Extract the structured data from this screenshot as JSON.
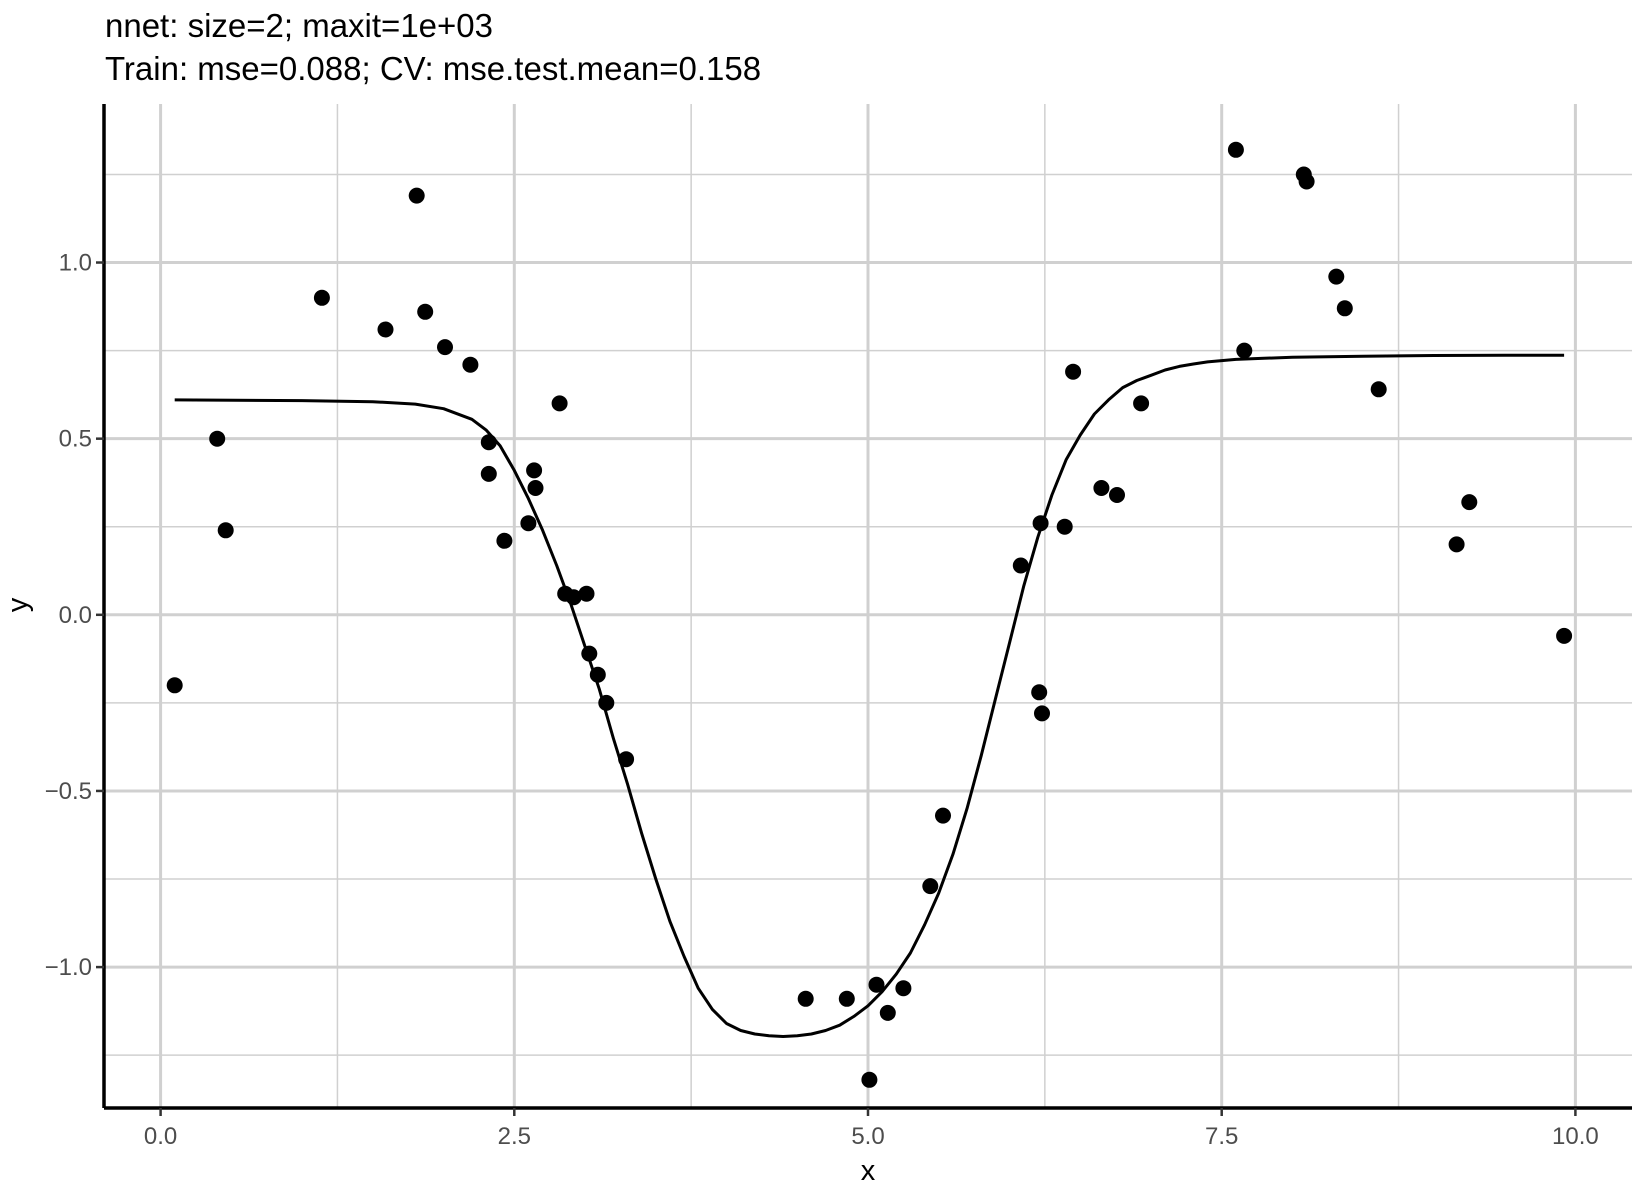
{
  "chart_data": {
    "type": "scatter",
    "title_lines": [
      "nnet: size=2; maxit=1e+03",
      "Train: mse=0.088; CV: mse.test.mean=0.158"
    ],
    "xlabel": "x",
    "ylabel": "y",
    "xlim": [
      -0.4,
      10.4
    ],
    "ylim": [
      -1.4,
      1.45
    ],
    "x_ticks": [
      0.0,
      2.5,
      5.0,
      7.5,
      10.0
    ],
    "x_tick_labels": [
      "0.0",
      "2.5",
      "5.0",
      "7.5",
      "10.0"
    ],
    "y_ticks": [
      -1.0,
      -0.5,
      0.0,
      0.5,
      1.0
    ],
    "y_tick_labels": [
      "−1.0",
      "−0.5",
      "0.0",
      "0.5",
      "1.0"
    ],
    "x_minor_ticks": [
      1.25,
      3.75,
      6.25,
      8.75
    ],
    "y_minor_ticks": [
      -1.25,
      -0.75,
      -0.25,
      0.25,
      0.75,
      1.25
    ],
    "grid": true,
    "colors": {
      "points": "#000000",
      "line": "#000000",
      "grid": "#d0d0d0"
    },
    "series": [
      {
        "kind": "points",
        "x": [
          0.1,
          0.4,
          0.46,
          1.14,
          1.59,
          1.81,
          1.87,
          2.01,
          2.19,
          2.32,
          2.32,
          2.43,
          2.6,
          2.64,
          2.65,
          2.82,
          2.86,
          2.92,
          3.01,
          3.03,
          3.09,
          3.15,
          3.29,
          4.56,
          4.85,
          5.01,
          5.06,
          5.14,
          5.25,
          5.44,
          5.53,
          6.08,
          6.21,
          6.22,
          6.23,
          6.39,
          6.45,
          6.65,
          6.76,
          6.93,
          7.6,
          7.66,
          8.08,
          8.1,
          8.31,
          8.37,
          8.61,
          9.16,
          9.25,
          9.92
        ],
        "y": [
          -0.2,
          0.5,
          0.24,
          0.9,
          0.81,
          1.19,
          0.86,
          0.76,
          0.71,
          0.49,
          0.4,
          0.21,
          0.26,
          0.41,
          0.36,
          0.6,
          0.06,
          0.05,
          0.06,
          -0.11,
          -0.17,
          -0.25,
          -0.41,
          -1.09,
          -1.09,
          -1.32,
          -1.05,
          -1.13,
          -1.06,
          -0.77,
          -0.57,
          0.14,
          -0.22,
          0.26,
          -0.28,
          0.25,
          0.69,
          0.36,
          0.34,
          0.6,
          1.32,
          0.75,
          1.25,
          1.23,
          0.96,
          0.87,
          0.64,
          0.2,
          0.32,
          -0.06
        ]
      },
      {
        "kind": "line",
        "x": [
          0.1,
          1.0,
          1.5,
          1.8,
          2.0,
          2.2,
          2.3,
          2.4,
          2.5,
          2.6,
          2.7,
          2.8,
          2.9,
          3.0,
          3.1,
          3.2,
          3.3,
          3.4,
          3.5,
          3.6,
          3.7,
          3.8,
          3.9,
          4.0,
          4.1,
          4.2,
          4.3,
          4.4,
          4.5,
          4.6,
          4.7,
          4.8,
          4.9,
          5.0,
          5.1,
          5.2,
          5.3,
          5.4,
          5.5,
          5.6,
          5.7,
          5.8,
          5.9,
          6.0,
          6.1,
          6.2,
          6.3,
          6.4,
          6.5,
          6.6,
          6.7,
          6.8,
          6.9,
          7.0,
          7.1,
          7.2,
          7.3,
          7.4,
          7.6,
          7.8,
          8.0,
          8.5,
          9.0,
          9.5,
          9.92
        ],
        "y": [
          0.61,
          0.608,
          0.605,
          0.598,
          0.585,
          0.555,
          0.525,
          0.48,
          0.41,
          0.33,
          0.24,
          0.14,
          0.03,
          -0.09,
          -0.21,
          -0.35,
          -0.48,
          -0.62,
          -0.75,
          -0.87,
          -0.97,
          -1.06,
          -1.12,
          -1.16,
          -1.18,
          -1.19,
          -1.195,
          -1.197,
          -1.195,
          -1.19,
          -1.18,
          -1.165,
          -1.14,
          -1.11,
          -1.07,
          -1.02,
          -0.96,
          -0.88,
          -0.79,
          -0.68,
          -0.55,
          -0.4,
          -0.24,
          -0.08,
          0.08,
          0.22,
          0.34,
          0.44,
          0.51,
          0.57,
          0.61,
          0.645,
          0.665,
          0.68,
          0.695,
          0.705,
          0.712,
          0.718,
          0.725,
          0.728,
          0.731,
          0.734,
          0.736,
          0.737,
          0.737
        ]
      }
    ]
  }
}
